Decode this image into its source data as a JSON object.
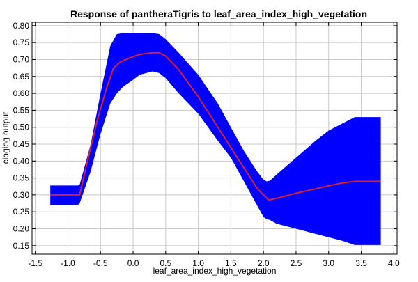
{
  "chart_data": {
    "type": "line",
    "title": "Response of pantheraTigris to leaf_area_index_high_vegetation",
    "xlabel": "leaf_area_index_high_vegetation",
    "ylabel": "cloglog output",
    "xlim": [
      -1.55,
      4.05
    ],
    "ylim": [
      0.125,
      0.81
    ],
    "grid": true,
    "xticks": [
      -1.5,
      -1.0,
      -0.5,
      0.0,
      0.5,
      1.0,
      1.5,
      2.0,
      2.5,
      3.0,
      3.5,
      4.0
    ],
    "xtick_labels": [
      "-1.5",
      "-1.0",
      "-0.5",
      "0.0",
      "0.5",
      "1.0",
      "1.5",
      "2.0",
      "2.5",
      "3.0",
      "3.5",
      "4.0"
    ],
    "yticks": [
      0.15,
      0.2,
      0.25,
      0.3,
      0.35,
      0.4,
      0.45,
      0.5,
      0.55,
      0.6,
      0.65,
      0.7,
      0.75,
      0.8
    ],
    "ytick_labels": [
      "0.15",
      "0.20",
      "0.25",
      "0.30",
      "0.35",
      "0.40",
      "0.45",
      "0.50",
      "0.55",
      "0.60",
      "0.65",
      "0.70",
      "0.75",
      "0.80"
    ],
    "colors": {
      "band": "#0000ff",
      "mean": "#d62035",
      "grid": "#c8c8c8"
    },
    "band": {
      "x": [
        -1.27,
        -0.85,
        -0.82,
        -0.65,
        -0.5,
        -0.35,
        -0.25,
        -0.15,
        0.0,
        0.1,
        0.3,
        0.4,
        0.5,
        0.7,
        1.0,
        1.3,
        1.5,
        1.7,
        1.9,
        2.0,
        2.05,
        2.1,
        2.2,
        2.5,
        2.8,
        3.0,
        3.2,
        3.4,
        3.8
      ],
      "upper": [
        0.328,
        0.328,
        0.33,
        0.45,
        0.6,
        0.74,
        0.775,
        0.778,
        0.778,
        0.778,
        0.778,
        0.775,
        0.76,
        0.72,
        0.655,
        0.57,
        0.5,
        0.43,
        0.37,
        0.345,
        0.34,
        0.342,
        0.36,
        0.41,
        0.46,
        0.49,
        0.51,
        0.53,
        0.53
      ],
      "lower": [
        0.27,
        0.27,
        0.275,
        0.37,
        0.48,
        0.57,
        0.6,
        0.62,
        0.64,
        0.655,
        0.665,
        0.66,
        0.645,
        0.6,
        0.54,
        0.46,
        0.41,
        0.34,
        0.27,
        0.235,
        0.228,
        0.226,
        0.215,
        0.2,
        0.185,
        0.175,
        0.165,
        0.152,
        0.152
      ]
    },
    "series": [
      {
        "x": [
          -1.27,
          -0.85,
          -0.82,
          -0.7,
          -0.55,
          -0.4,
          -0.3,
          -0.2,
          -0.05,
          0.1,
          0.3,
          0.4,
          0.5,
          0.7,
          1.0,
          1.3,
          1.5,
          1.7,
          1.9,
          2.0,
          2.08,
          2.2,
          2.5,
          2.8,
          3.0,
          3.2,
          3.4,
          3.8
        ],
        "values": [
          0.3,
          0.3,
          0.3,
          0.4,
          0.52,
          0.62,
          0.675,
          0.692,
          0.705,
          0.715,
          0.72,
          0.72,
          0.71,
          0.67,
          0.59,
          0.5,
          0.44,
          0.38,
          0.32,
          0.3,
          0.285,
          0.29,
          0.305,
          0.318,
          0.327,
          0.335,
          0.34,
          0.34
        ]
      }
    ]
  }
}
